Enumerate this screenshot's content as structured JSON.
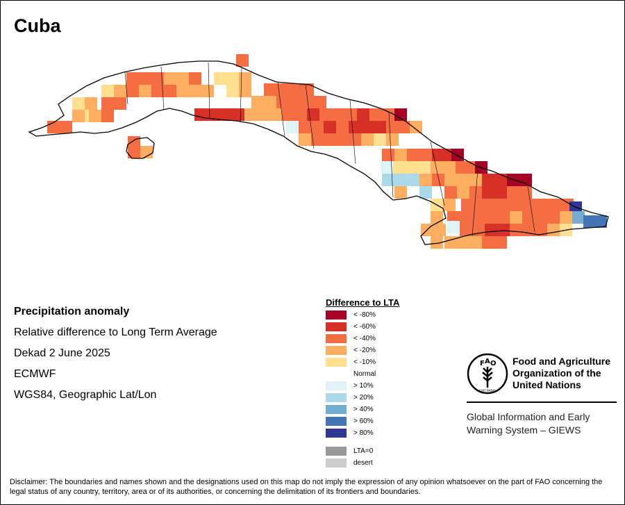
{
  "map": {
    "title": "Cuba",
    "info": {
      "heading": "Precipitation anomaly",
      "line1": "Relative difference to Long Term Average",
      "line2": "Dekad 2 June 2025",
      "line3": "ECMWF",
      "line4": "WGS84, Geographic Lat/Lon"
    }
  },
  "legend": {
    "title": "Difference to LTA",
    "classes": [
      {
        "label": "< -80%",
        "color": "#a50026"
      },
      {
        "label": "< -60%",
        "color": "#d73027"
      },
      {
        "label": "< -40%",
        "color": "#f46d43"
      },
      {
        "label": "< -20%",
        "color": "#fdae61"
      },
      {
        "label": "< -10%",
        "color": "#fee090"
      },
      {
        "label": "Normal",
        "color": "#ffffff"
      },
      {
        "label": "> 10%",
        "color": "#e0f3f8"
      },
      {
        "label": "> 20%",
        "color": "#abd9e9"
      },
      {
        "label": "> 40%",
        "color": "#74add1"
      },
      {
        "label": "> 60%",
        "color": "#4575b4"
      },
      {
        "label": "> 80%",
        "color": "#313695"
      }
    ],
    "extra": [
      {
        "label": "LTA=0",
        "color": "#999999"
      },
      {
        "label": "desert",
        "color": "#cccccc"
      }
    ]
  },
  "organization": {
    "logo_icon": "fao-logo-icon",
    "logo_text": "FIAT PANIS",
    "name": "Food and Agriculture Organization of the United Nations",
    "system": "Global Information and Early Warning System – GIEWS"
  },
  "disclaimer": "Disclaimer: The boundaries and names shown and the designations used on this map do not imply the expression of any opinion whatsoever on the part of FAO concerning the legal status of any country, territory, area or of its authorities, or concerning the delimitation of its frontiers and boundaries."
}
